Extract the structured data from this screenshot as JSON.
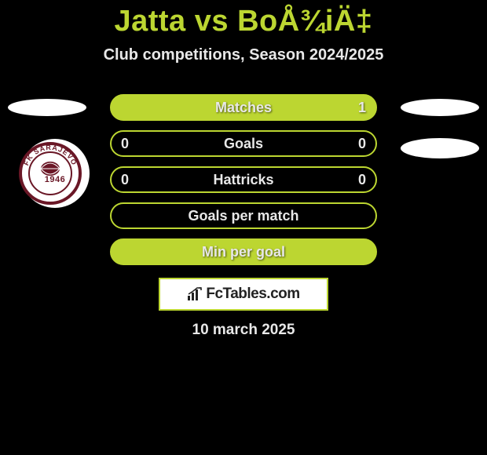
{
  "title": "Jatta vs BoÅ¾iÄ‡",
  "subtitle": "Club competitions, Season 2024/2025",
  "date": "10 march 2025",
  "badge": {
    "year": "1946",
    "top_text": "FK SARAJEVO"
  },
  "branding": {
    "label": "FcTables.com"
  },
  "styling": {
    "background_color": "#000000",
    "accent_color": "#bcd631",
    "text_color": "#e8e8e8",
    "badge_primary": "#6a1726",
    "brand_box_bg": "#ffffff",
    "pill_width": 340,
    "pill_height": 34,
    "pill_border_radius": 17,
    "title_fontsize": 38,
    "subtitle_fontsize": 20,
    "row_label_fontsize": 18,
    "date_fontsize": 19
  },
  "rows": [
    {
      "label": "Matches",
      "left": "",
      "right": "1",
      "filled": true
    },
    {
      "label": "Goals",
      "left": "0",
      "right": "0",
      "filled": false
    },
    {
      "label": "Hattricks",
      "left": "0",
      "right": "0",
      "filled": false
    },
    {
      "label": "Goals per match",
      "left": "",
      "right": "",
      "filled": false
    },
    {
      "label": "Min per goal",
      "left": "",
      "right": "",
      "filled": true
    }
  ]
}
